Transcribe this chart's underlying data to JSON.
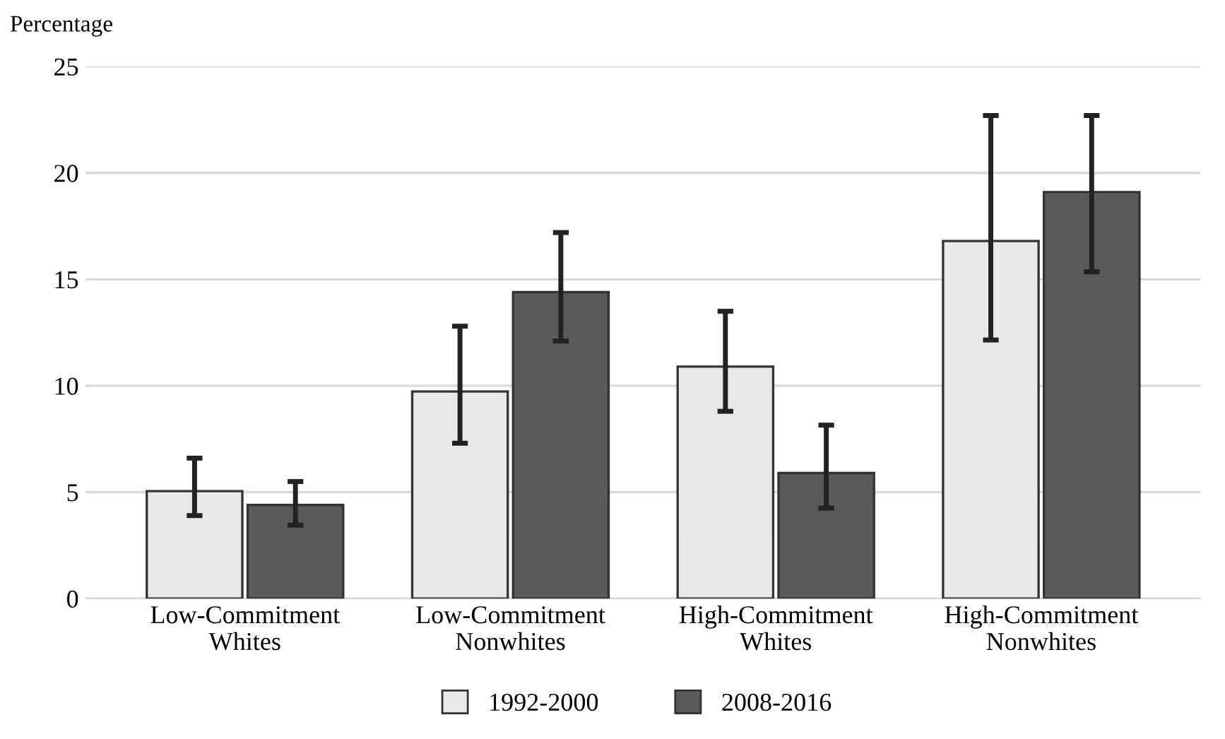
{
  "chart_data": {
    "type": "bar",
    "ylabel": "Percentage",
    "categories": [
      "Low-Commitment\nWhites",
      "Low-Commitment\nNonwhites",
      "High-Commitment\nWhites",
      "High-Commitment\nNonwhites"
    ],
    "series": [
      {
        "name": "1992-2000",
        "color": "#e8e8e8",
        "values": [
          5.05,
          9.73,
          10.9,
          16.8
        ],
        "errors": [
          [
            3.9,
            6.6
          ],
          [
            7.3,
            12.8
          ],
          [
            8.8,
            13.5
          ],
          [
            12.15,
            22.7
          ]
        ]
      },
      {
        "name": "2008-2016",
        "color": "#5a5a5a",
        "values": [
          4.4,
          14.4,
          5.9,
          19.1
        ],
        "errors": [
          [
            3.45,
            5.5
          ],
          [
            12.1,
            17.2
          ],
          [
            4.25,
            8.15
          ],
          [
            15.35,
            22.7
          ]
        ]
      }
    ],
    "ylim": [
      0,
      25
    ],
    "yticks": [
      0,
      5,
      10,
      15,
      20,
      25
    ],
    "grid": "y",
    "legend": "bottom"
  }
}
